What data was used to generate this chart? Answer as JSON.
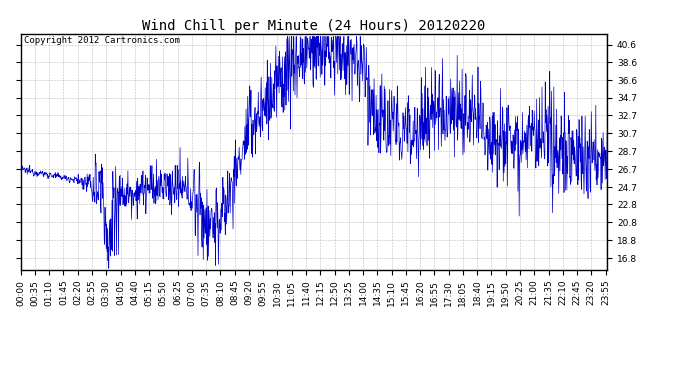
{
  "title": "Wind Chill per Minute (24 Hours) 20120220",
  "copyright_text": "Copyright 2012 Cartronics.com",
  "line_color": "#0000cc",
  "background_color": "#ffffff",
  "yticks": [
    16.8,
    18.8,
    20.8,
    22.8,
    24.7,
    26.7,
    28.7,
    30.7,
    32.7,
    34.7,
    36.6,
    38.6,
    40.6
  ],
  "ylim": [
    15.5,
    41.8
  ],
  "grid_color": "#aaaaaa",
  "title_fontsize": 10,
  "tick_fontsize": 6.5,
  "copyright_fontsize": 6.5,
  "n_minutes": 1440,
  "xtick_step": 35,
  "figsize": [
    6.9,
    3.75
  ],
  "dpi": 100
}
